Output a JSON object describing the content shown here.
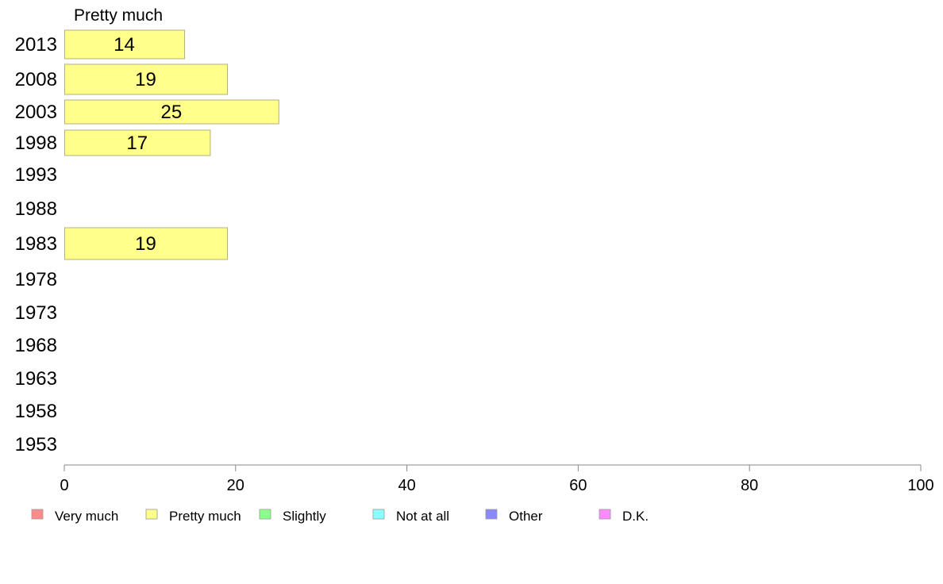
{
  "chart_data": {
    "type": "bar",
    "orientation": "horizontal",
    "title": "",
    "xlabel": "",
    "ylabel": "",
    "categories": [
      "2013",
      "2008",
      "2003",
      "1998",
      "1993",
      "1988",
      "1983",
      "1978",
      "1973",
      "1968",
      "1963",
      "1958",
      "1953"
    ],
    "shown_series": "Pretty much",
    "series": [
      {
        "name": "Very much",
        "color": "#ff8a8a",
        "values": [
          null,
          null,
          null,
          null,
          null,
          null,
          null,
          null,
          null,
          null,
          null,
          null,
          null
        ]
      },
      {
        "name": "Pretty much",
        "color": "#ffff8a",
        "values": [
          14,
          19,
          25,
          17,
          null,
          null,
          19,
          null,
          null,
          null,
          null,
          null,
          null
        ]
      },
      {
        "name": "Slightly",
        "color": "#8aff8a",
        "values": [
          null,
          null,
          null,
          null,
          null,
          null,
          null,
          null,
          null,
          null,
          null,
          null,
          null
        ]
      },
      {
        "name": "Not at all",
        "color": "#8affff",
        "values": [
          null,
          null,
          null,
          null,
          null,
          null,
          null,
          null,
          null,
          null,
          null,
          null,
          null
        ]
      },
      {
        "name": "Other",
        "color": "#8a8aff",
        "values": [
          null,
          null,
          null,
          null,
          null,
          null,
          null,
          null,
          null,
          null,
          null,
          null,
          null
        ]
      },
      {
        "name": "D.K.",
        "color": "#ff8aff",
        "values": [
          null,
          null,
          null,
          null,
          null,
          null,
          null,
          null,
          null,
          null,
          null,
          null,
          null
        ]
      }
    ],
    "xlim": [
      0,
      100
    ],
    "xticks": [
      0,
      20,
      40,
      60,
      80,
      100
    ],
    "grid": false,
    "legend_position": "bottom-left",
    "bar_border_color": "#b0b080",
    "axis_color": "#888888"
  }
}
